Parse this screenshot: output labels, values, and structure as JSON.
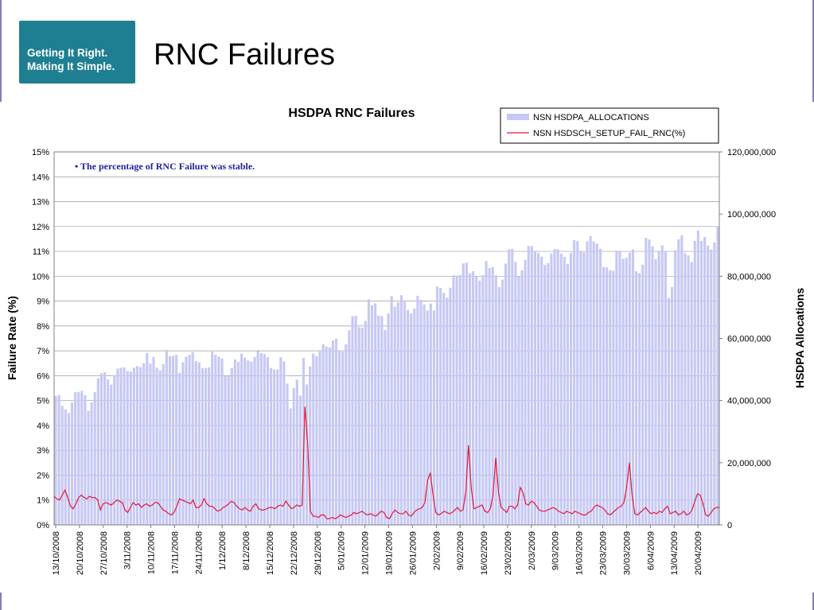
{
  "logo": {
    "line1": "Getting It Right.",
    "line2": "Making It Simple."
  },
  "slide_title": "RNC Failures",
  "colors": {
    "bars": "#c6c8f4",
    "line": "#e3173a",
    "logo_bg": "#1f7f92",
    "annotation": "#1f1fa0"
  },
  "chart_data": {
    "type": "bar",
    "title": "HSDPA RNC Failures",
    "ylabel": "Failure Rate (%)",
    "y2label": "HSDPA Allocations",
    "ylim": [
      0,
      15
    ],
    "y2lim": [
      0,
      120000000
    ],
    "yticks": [
      "0%",
      "1%",
      "2%",
      "3%",
      "4%",
      "5%",
      "6%",
      "7%",
      "8%",
      "9%",
      "10%",
      "11%",
      "12%",
      "13%",
      "14%",
      "15%"
    ],
    "y2ticks": [
      "0",
      "20,000,000",
      "40,000,000",
      "60,000,000",
      "80,000,000",
      "100,000,000",
      "120,000,000"
    ],
    "xticks": [
      "13/10/2008",
      "20/10/2008",
      "27/10/2008",
      "3/11/2008",
      "10/11/2008",
      "17/11/2008",
      "24/11/2008",
      "1/12/2008",
      "8/12/2008",
      "15/12/2008",
      "22/12/2008",
      "29/12/2008",
      "5/01/2009",
      "12/01/2009",
      "19/01/2009",
      "26/01/2009",
      "2/02/2009",
      "9/02/2009",
      "16/02/2009",
      "23/02/2009",
      "2/03/2009",
      "9/03/2009",
      "16/03/2009",
      "23/03/2009",
      "30/03/2009",
      "6/04/2009",
      "13/04/2009",
      "20/04/2009"
    ],
    "grid": true,
    "legend_position": "top-right",
    "annotation": "• The percentage of RNC Failure was stable.",
    "series": [
      {
        "name": "NSN HSDPA_ALLOCATIONS",
        "type": "bar",
        "axis": "right",
        "values": [
          41500000,
          41800000,
          38300000,
          37200000,
          36000000,
          39400000,
          42700000,
          42800000,
          43100000,
          41700000,
          36700000,
          39400000,
          42700000,
          47200000,
          48800000,
          49100000,
          46800000,
          45100000,
          48200000,
          50300000,
          50600000,
          50700000,
          49500000,
          49300000,
          50600000,
          51100000,
          50800000,
          52000000,
          55300000,
          51900000,
          54000000,
          50600000,
          49700000,
          51700000,
          56300000,
          54300000,
          54400000,
          54700000,
          48900000,
          52300000,
          54100000,
          54700000,
          55600000,
          52700000,
          52300000,
          50400000,
          50500000,
          50700000,
          55700000,
          54700000,
          54100000,
          53500000,
          47900000,
          48000000,
          50500000,
          53200000,
          52500000,
          55100000,
          53800000,
          52900000,
          52500000,
          54000000,
          55900000,
          55300000,
          55000000,
          54000000,
          50500000,
          50000000,
          50000000,
          53900000,
          52600000,
          45500000,
          37500000,
          44000000,
          46700000,
          41600000,
          53700000,
          45200000,
          51000000,
          55100000,
          54300000,
          56100000,
          58100000,
          57400000,
          57100000,
          59300000,
          59900000,
          56200000,
          55700000,
          58100000,
          62600000,
          67100000,
          67300000,
          63600000,
          63400000,
          65600000,
          72600000,
          70700000,
          71300000,
          67300000,
          67200000,
          62700000,
          68000000,
          73600000,
          70200000,
          71600000,
          73900000,
          71800000,
          69200000,
          68100000,
          69600000,
          73700000,
          72400000,
          70900000,
          69000000,
          71200000,
          69000000,
          76700000,
          76200000,
          74700000,
          73100000,
          76300000,
          80300000,
          80200000,
          80400000,
          84100000,
          84400000,
          81000000,
          81600000,
          79900000,
          78600000,
          80300000,
          84900000,
          82600000,
          82900000,
          80300000,
          76500000,
          78900000,
          84100000,
          88600000,
          88800000,
          84600000,
          79900000,
          81900000,
          85300000,
          89700000,
          89700000,
          87900000,
          87400000,
          86300000,
          83700000,
          84200000,
          87300000,
          88800000,
          88700000,
          87300000,
          86200000,
          84000000,
          87500000,
          91600000,
          91300000,
          87900000,
          87700000,
          91200000,
          92900000,
          91200000,
          90500000,
          88800000,
          83000000,
          82800000,
          82000000,
          81800000,
          88200000,
          87900000,
          85600000,
          85900000,
          87600000,
          88600000,
          81600000,
          81000000,
          83700000,
          92400000,
          91800000,
          89600000,
          85500000,
          87900000,
          89900000,
          88000000,
          73000000,
          76500000,
          88300000,
          91900000,
          93200000,
          87400000,
          86700000,
          84600000,
          91400000,
          94700000,
          91400000,
          92600000,
          89900000,
          88600000,
          90900000,
          96000000
        ]
      },
      {
        "name": "NSN HSDSCH_SETUP_FAIL_RNC(%)",
        "type": "line",
        "axis": "left",
        "values": [
          1.15,
          1.05,
          1.0,
          1.2,
          1.4,
          1.1,
          0.75,
          0.65,
          0.85,
          1.1,
          1.2,
          1.1,
          1.05,
          1.15,
          1.1,
          1.1,
          1.0,
          0.6,
          0.85,
          0.9,
          0.85,
          0.8,
          0.9,
          1.0,
          0.95,
          0.9,
          0.6,
          0.5,
          0.7,
          0.9,
          0.8,
          0.85,
          0.7,
          0.8,
          0.85,
          0.75,
          0.8,
          0.9,
          0.9,
          0.75,
          0.6,
          0.55,
          0.45,
          0.4,
          0.5,
          0.75,
          1.05,
          1.0,
          0.95,
          0.9,
          0.85,
          1.0,
          0.7,
          0.7,
          0.8,
          1.05,
          0.85,
          0.75,
          0.75,
          0.65,
          0.55,
          0.6,
          0.7,
          0.75,
          0.85,
          0.95,
          0.9,
          0.75,
          0.65,
          0.6,
          0.7,
          0.6,
          0.55,
          0.75,
          0.85,
          0.65,
          0.6,
          0.6,
          0.65,
          0.7,
          0.7,
          0.65,
          0.75,
          0.8,
          0.75,
          0.95,
          0.8,
          0.65,
          0.7,
          0.8,
          0.75,
          0.8,
          4.75,
          3.3,
          0.55,
          0.35,
          0.35,
          0.3,
          0.4,
          0.4,
          0.25,
          0.25,
          0.3,
          0.25,
          0.3,
          0.4,
          0.35,
          0.3,
          0.35,
          0.4,
          0.5,
          0.45,
          0.5,
          0.55,
          0.45,
          0.4,
          0.45,
          0.4,
          0.35,
          0.45,
          0.55,
          0.5,
          0.3,
          0.25,
          0.45,
          0.6,
          0.5,
          0.45,
          0.45,
          0.55,
          0.4,
          0.35,
          0.5,
          0.6,
          0.65,
          0.7,
          0.9,
          1.8,
          2.1,
          1.2,
          0.5,
          0.4,
          0.45,
          0.55,
          0.5,
          0.45,
          0.5,
          0.6,
          0.7,
          0.55,
          0.6,
          1.3,
          3.2,
          1.5,
          0.65,
          0.7,
          0.75,
          0.8,
          0.55,
          0.5,
          0.65,
          1.2,
          2.7,
          1.3,
          0.7,
          0.6,
          0.5,
          0.75,
          0.75,
          0.65,
          0.8,
          1.5,
          1.3,
          0.85,
          0.8,
          0.95,
          0.9,
          0.75,
          0.6,
          0.55,
          0.55,
          0.6,
          0.65,
          0.7,
          0.65,
          0.55,
          0.5,
          0.45,
          0.55,
          0.5,
          0.45,
          0.55,
          0.5,
          0.45,
          0.4,
          0.4,
          0.5,
          0.55,
          0.7,
          0.8,
          0.75,
          0.7,
          0.6,
          0.45,
          0.4,
          0.5,
          0.6,
          0.7,
          0.75,
          0.9,
          1.5,
          2.5,
          1.2,
          0.45,
          0.4,
          0.5,
          0.6,
          0.7,
          0.55,
          0.45,
          0.5,
          0.45,
          0.55,
          0.5,
          0.65,
          0.75,
          0.45,
          0.5,
          0.55,
          0.4,
          0.45,
          0.55,
          0.4,
          0.45,
          0.6,
          0.95,
          1.25,
          1.2,
          0.85,
          0.4,
          0.35,
          0.5,
          0.65,
          0.7,
          0.7
        ]
      }
    ]
  }
}
